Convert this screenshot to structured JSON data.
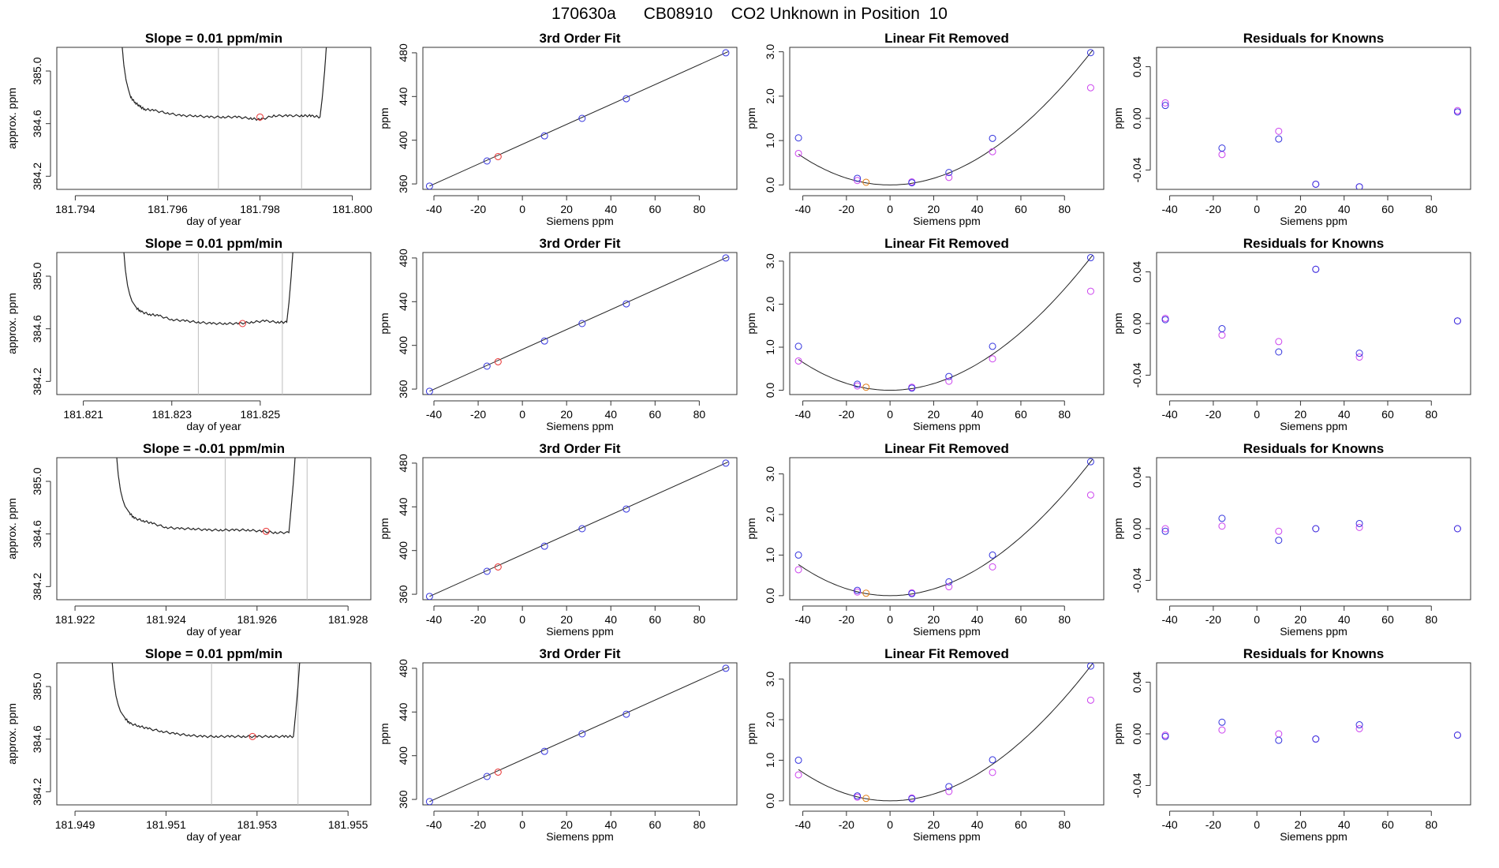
{
  "page_title": "170630a      CB08910    CO2 Unknown in Position  10",
  "colors": {
    "line": "#222222",
    "cursor": "#bdbdbd",
    "blue": "#3333dd",
    "magenta": "#cc44ee",
    "red": "#e83333",
    "orange": "#e07a10"
  },
  "chart_data": [
    {
      "type": "line",
      "title": "Slope =  0.01  ppm/min",
      "xlabel": "day of year",
      "ylabel": "approx. ppm",
      "xlim": [
        181.7936,
        181.8004
      ],
      "ylim": [
        384.1,
        385.18
      ],
      "xticks": [
        "181.794",
        "181.796",
        "181.798",
        "181.800"
      ],
      "yticks": [
        "384.2",
        "384.6",
        "385.0"
      ],
      "x": [
        181.795,
        181.79505,
        181.7951,
        181.79515,
        181.7952,
        181.7953,
        181.7954,
        181.7955,
        181.7957,
        181.796,
        181.7963,
        181.7966,
        181.7969,
        181.7972,
        181.7975,
        181.7978,
        181.798,
        181.7983,
        181.7986,
        181.7989,
        181.7991,
        181.7993,
        181.79935,
        181.7994,
        181.79945
      ],
      "y": [
        385.25,
        385.05,
        384.93,
        384.86,
        384.8,
        384.76,
        384.73,
        384.71,
        384.7,
        384.68,
        384.66,
        384.66,
        384.65,
        384.65,
        384.65,
        384.64,
        384.63,
        384.66,
        384.66,
        384.66,
        384.66,
        384.65,
        384.8,
        385.0,
        385.25
      ],
      "cursors": [
        181.7971,
        181.7989
      ],
      "marker": {
        "x": 181.798,
        "y": 384.65
      }
    },
    {
      "type": "scatter",
      "title": "3rd Order Fit",
      "xlabel": "Siemens ppm",
      "ylabel": "ppm",
      "xlim": [
        -45,
        97
      ],
      "ylim": [
        355,
        485
      ],
      "xticks": [
        "-40",
        "-20",
        "0",
        "20",
        "40",
        "60",
        "80"
      ],
      "yticks": [
        "360",
        "400",
        "440",
        "480"
      ],
      "fit_x": [
        -42,
        93
      ],
      "fit_y": [
        358,
        481
      ],
      "blue_x": [
        -42,
        -16,
        10,
        27,
        47,
        92
      ],
      "blue_y": [
        358,
        381,
        404,
        420,
        438,
        480
      ],
      "red_x": [
        -11
      ],
      "red_y": [
        385
      ]
    },
    {
      "type": "scatter",
      "title": "Linear Fit Removed",
      "xlabel": "Siemens ppm",
      "ylabel": "ppm",
      "xlim": [
        -46,
        98
      ],
      "ylim": [
        -0.1,
        3.1
      ],
      "xticks": [
        "-40",
        "-20",
        "0",
        "20",
        "40",
        "60",
        "80"
      ],
      "yticks": [
        "0.0",
        "1.0",
        "2.0",
        "3.0"
      ],
      "curve_peak": 2.98,
      "blue_x": [
        -42,
        -15,
        10,
        27,
        47,
        92
      ],
      "blue_y": [
        1.06,
        0.15,
        0.05,
        0.28,
        1.05,
        2.98
      ],
      "magenta_x": [
        -42,
        -15,
        10,
        27,
        47,
        92
      ],
      "magenta_y": [
        0.71,
        0.1,
        0.07,
        0.17,
        0.75,
        2.19
      ],
      "orange_x": [
        -11
      ],
      "orange_y": [
        0.06
      ]
    },
    {
      "type": "scatter",
      "title": "Residuals for Knowns",
      "xlabel": "Siemens ppm",
      "ylabel": "ppm",
      "xlim": [
        -46,
        98
      ],
      "ylim": [
        -0.055,
        0.055
      ],
      "xticks": [
        "-40",
        "-20",
        "0",
        "20",
        "40",
        "60",
        "80"
      ],
      "yticks": [
        "-0.04",
        "0.00",
        "0.04"
      ],
      "blue_x": [
        -42,
        -16,
        10,
        27,
        47,
        92
      ],
      "blue_y": [
        0.01,
        -0.023,
        -0.016,
        -0.051,
        -0.053,
        0.005
      ],
      "magenta_x": [
        -42,
        -16,
        10,
        27,
        47,
        92
      ],
      "magenta_y": [
        0.012,
        -0.028,
        -0.01,
        -0.051,
        -0.053,
        0.006
      ]
    },
    {
      "type": "line",
      "title": "Slope =  0.01  ppm/min",
      "xlabel": "day of year",
      "ylabel": "approx. ppm",
      "xlim": [
        181.8204,
        181.8275
      ],
      "ylim": [
        384.1,
        385.18
      ],
      "xticks": [
        "181.821",
        "181.823",
        "181.825"
      ],
      "yticks": [
        "384.2",
        "384.6",
        "385.0"
      ],
      "x": [
        181.8219,
        181.82195,
        181.822,
        181.82205,
        181.8221,
        181.8222,
        181.8223,
        181.8225,
        181.8227,
        181.823,
        181.8233,
        181.8236,
        181.8239,
        181.8242,
        181.8245,
        181.8248,
        181.8251,
        181.8254,
        181.8256,
        181.82565,
        181.8257,
        181.82575
      ],
      "y": [
        385.25,
        385.05,
        384.93,
        384.86,
        384.81,
        384.76,
        384.73,
        384.71,
        384.7,
        384.67,
        384.66,
        384.65,
        384.64,
        384.64,
        384.64,
        384.65,
        384.66,
        384.65,
        384.65,
        384.8,
        385.0,
        385.25
      ],
      "cursors": [
        181.8236,
        181.8255
      ],
      "marker": {
        "x": 181.8246,
        "y": 384.64
      }
    },
    {
      "type": "scatter",
      "title": "3rd Order Fit",
      "xlabel": "Siemens ppm",
      "ylabel": "ppm",
      "xlim": [
        -45,
        97
      ],
      "ylim": [
        355,
        485
      ],
      "xticks": [
        "-40",
        "-20",
        "0",
        "20",
        "40",
        "60",
        "80"
      ],
      "yticks": [
        "360",
        "400",
        "440",
        "480"
      ],
      "fit_x": [
        -42,
        93
      ],
      "fit_y": [
        358,
        481
      ],
      "blue_x": [
        -42,
        -16,
        10,
        27,
        47,
        92
      ],
      "blue_y": [
        358,
        381,
        404,
        420,
        438,
        480
      ],
      "red_x": [
        -11
      ],
      "red_y": [
        385
      ]
    },
    {
      "type": "scatter",
      "title": "Linear Fit Removed",
      "xlabel": "Siemens ppm",
      "ylabel": "ppm",
      "xlim": [
        -46,
        98
      ],
      "ylim": [
        -0.1,
        3.2
      ],
      "xticks": [
        "-40",
        "-20",
        "0",
        "20",
        "40",
        "60",
        "80"
      ],
      "yticks": [
        "0.0",
        "1.0",
        "2.0",
        "3.0"
      ],
      "curve_peak": 3.08,
      "blue_x": [
        -42,
        -15,
        10,
        27,
        47,
        92
      ],
      "blue_y": [
        1.02,
        0.14,
        0.05,
        0.32,
        1.02,
        3.08
      ],
      "magenta_x": [
        -42,
        -15,
        10,
        27,
        47,
        92
      ],
      "magenta_y": [
        0.68,
        0.1,
        0.07,
        0.21,
        0.73,
        2.3
      ],
      "orange_x": [
        -11
      ],
      "orange_y": [
        0.07
      ]
    },
    {
      "type": "scatter",
      "title": "Residuals for Knowns",
      "xlabel": "Siemens ppm",
      "ylabel": "ppm",
      "xlim": [
        -46,
        98
      ],
      "ylim": [
        -0.055,
        0.055
      ],
      "xticks": [
        "-40",
        "-20",
        "0",
        "20",
        "40",
        "60",
        "80"
      ],
      "yticks": [
        "-0.04",
        "0.00",
        "0.04"
      ],
      "blue_x": [
        -42,
        -16,
        10,
        27,
        47,
        92
      ],
      "blue_y": [
        0.003,
        -0.004,
        -0.022,
        0.042,
        -0.023,
        0.002
      ],
      "magenta_x": [
        -42,
        -16,
        10,
        27,
        47,
        92
      ],
      "magenta_y": [
        0.004,
        -0.009,
        -0.014,
        0.042,
        -0.026,
        0.002
      ]
    },
    {
      "type": "line",
      "title": "Slope =  -0.01  ppm/min",
      "xlabel": "day of year",
      "ylabel": "approx. ppm",
      "xlim": [
        181.9216,
        181.9285
      ],
      "ylim": [
        384.1,
        385.18
      ],
      "xticks": [
        "181.922",
        "181.924",
        "181.926",
        "181.928"
      ],
      "yticks": [
        "384.2",
        "384.6",
        "385.0"
      ],
      "x": [
        181.9229,
        181.92295,
        181.923,
        181.92305,
        181.9231,
        181.9232,
        181.9233,
        181.9235,
        181.9237,
        181.924,
        181.9243,
        181.9246,
        181.9249,
        181.9252,
        181.9255,
        181.9258,
        181.9261,
        181.9264,
        181.9267,
        181.92675,
        181.9268,
        181.92685
      ],
      "y": [
        385.25,
        385.05,
        384.93,
        384.86,
        384.81,
        384.76,
        384.72,
        384.7,
        384.68,
        384.65,
        384.64,
        384.64,
        384.63,
        384.63,
        384.63,
        384.63,
        384.62,
        384.61,
        384.61,
        384.8,
        385.0,
        385.25
      ],
      "cursors": [
        181.9253,
        181.9271
      ],
      "marker": {
        "x": 181.9262,
        "y": 384.62
      }
    },
    {
      "type": "scatter",
      "title": "3rd Order Fit",
      "xlabel": "Siemens ppm",
      "ylabel": "ppm",
      "xlim": [
        -45,
        97
      ],
      "ylim": [
        355,
        485
      ],
      "xticks": [
        "-40",
        "-20",
        "0",
        "20",
        "40",
        "60",
        "80"
      ],
      "yticks": [
        "360",
        "400",
        "440",
        "480"
      ],
      "fit_x": [
        -42,
        93
      ],
      "fit_y": [
        358,
        481
      ],
      "blue_x": [
        -42,
        -16,
        10,
        27,
        47,
        92
      ],
      "blue_y": [
        358,
        381,
        404,
        420,
        438,
        480
      ],
      "red_x": [
        -11
      ],
      "red_y": [
        385
      ]
    },
    {
      "type": "scatter",
      "title": "Linear Fit Removed",
      "xlabel": "Siemens ppm",
      "ylabel": "ppm",
      "xlim": [
        -46,
        98
      ],
      "ylim": [
        -0.1,
        3.4
      ],
      "xticks": [
        "-40",
        "-20",
        "0",
        "20",
        "40",
        "60",
        "80"
      ],
      "yticks": [
        "0.0",
        "1.0",
        "2.0",
        "3.0"
      ],
      "curve_peak": 3.3,
      "blue_x": [
        -42,
        -15,
        10,
        27,
        47,
        92
      ],
      "blue_y": [
        1.0,
        0.13,
        0.05,
        0.34,
        1.0,
        3.3
      ],
      "magenta_x": [
        -42,
        -15,
        10,
        27,
        47,
        92
      ],
      "magenta_y": [
        0.64,
        0.09,
        0.07,
        0.22,
        0.71,
        2.48
      ],
      "orange_x": [
        -11
      ],
      "orange_y": [
        0.06
      ]
    },
    {
      "type": "scatter",
      "title": "Residuals for Knowns",
      "xlabel": "Siemens ppm",
      "ylabel": "ppm",
      "xlim": [
        -46,
        98
      ],
      "ylim": [
        -0.055,
        0.055
      ],
      "xticks": [
        "-40",
        "-20",
        "0",
        "20",
        "40",
        "60",
        "80"
      ],
      "yticks": [
        "-0.04",
        "0.00",
        "0.04"
      ],
      "blue_x": [
        -42,
        -16,
        10,
        27,
        47,
        92
      ],
      "blue_y": [
        -0.002,
        0.008,
        -0.009,
        0.0,
        0.004,
        0.0
      ],
      "magenta_x": [
        -42,
        -16,
        10,
        27,
        47,
        92
      ],
      "magenta_y": [
        0.0,
        0.002,
        -0.002,
        0.0,
        0.001,
        0.0
      ]
    },
    {
      "type": "line",
      "title": "Slope =  0.01  ppm/min",
      "xlabel": "day of year",
      "ylabel": "approx. ppm",
      "xlim": [
        181.9486,
        181.9555
      ],
      "ylim": [
        384.1,
        385.18
      ],
      "xticks": [
        "181.949",
        "181.951",
        "181.953",
        "181.955"
      ],
      "yticks": [
        "384.2",
        "384.6",
        "385.0"
      ],
      "x": [
        181.9498,
        181.94985,
        181.9499,
        181.94995,
        181.95,
        181.9501,
        181.9502,
        181.9504,
        181.9506,
        181.9509,
        181.9512,
        181.9515,
        181.9518,
        181.9521,
        181.9524,
        181.9527,
        181.953,
        181.9533,
        181.9536,
        181.9538,
        181.95385,
        181.9539,
        181.95395
      ],
      "y": [
        385.25,
        385.05,
        384.93,
        384.86,
        384.81,
        384.76,
        384.72,
        384.7,
        384.68,
        384.66,
        384.64,
        384.63,
        384.62,
        384.62,
        384.62,
        384.62,
        384.62,
        384.62,
        384.62,
        384.62,
        384.8,
        385.0,
        385.25
      ],
      "cursors": [
        181.952,
        181.9539
      ],
      "marker": {
        "x": 181.9529,
        "y": 384.62
      }
    },
    {
      "type": "scatter",
      "title": "3rd Order Fit",
      "xlabel": "Siemens ppm",
      "ylabel": "ppm",
      "xlim": [
        -45,
        97
      ],
      "ylim": [
        355,
        485
      ],
      "xticks": [
        "-40",
        "-20",
        "0",
        "20",
        "40",
        "60",
        "80"
      ],
      "yticks": [
        "360",
        "400",
        "440",
        "480"
      ],
      "fit_x": [
        -42,
        93
      ],
      "fit_y": [
        358,
        481
      ],
      "blue_x": [
        -42,
        -16,
        10,
        27,
        47,
        92
      ],
      "blue_y": [
        358,
        381,
        404,
        420,
        438,
        480
      ],
      "red_x": [
        -11
      ],
      "red_y": [
        385
      ]
    },
    {
      "type": "scatter",
      "title": "Linear Fit Removed",
      "xlabel": "Siemens ppm",
      "ylabel": "ppm",
      "xlim": [
        -46,
        98
      ],
      "ylim": [
        -0.1,
        3.4
      ],
      "xticks": [
        "-40",
        "-20",
        "0",
        "20",
        "40",
        "60",
        "80"
      ],
      "yticks": [
        "0.0",
        "1.0",
        "2.0",
        "3.0"
      ],
      "curve_peak": 3.32,
      "blue_x": [
        -42,
        -15,
        10,
        27,
        47,
        92
      ],
      "blue_y": [
        1.0,
        0.12,
        0.05,
        0.35,
        1.01,
        3.32
      ],
      "magenta_x": [
        -42,
        -15,
        10,
        27,
        47,
        92
      ],
      "magenta_y": [
        0.64,
        0.09,
        0.07,
        0.23,
        0.7,
        2.48
      ],
      "orange_x": [
        -11
      ],
      "orange_y": [
        0.06
      ]
    },
    {
      "type": "scatter",
      "title": "Residuals for Knowns",
      "xlabel": "Siemens ppm",
      "ylabel": "ppm",
      "xlim": [
        -46,
        98
      ],
      "ylim": [
        -0.055,
        0.055
      ],
      "xticks": [
        "-40",
        "-20",
        "0",
        "20",
        "40",
        "60",
        "80"
      ],
      "yticks": [
        "-0.04",
        "0.00",
        "0.04"
      ],
      "blue_x": [
        -42,
        -16,
        10,
        27,
        47,
        92
      ],
      "blue_y": [
        -0.002,
        0.009,
        -0.005,
        -0.004,
        0.007,
        -0.001
      ],
      "magenta_x": [
        -42,
        -16,
        10,
        27,
        47,
        92
      ],
      "magenta_y": [
        -0.001,
        0.003,
        0.0,
        -0.004,
        0.004,
        -0.001
      ]
    }
  ]
}
